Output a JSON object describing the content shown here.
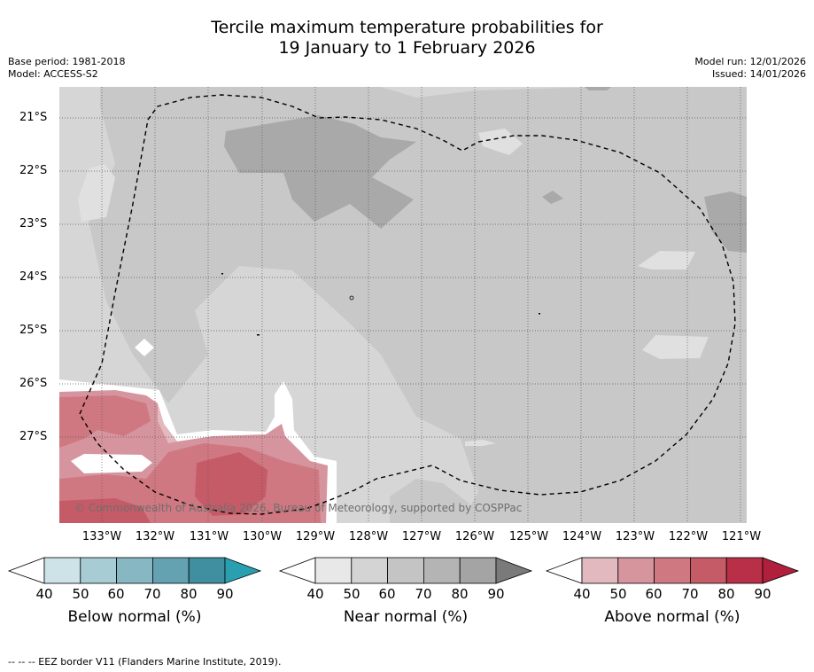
{
  "title": {
    "line1": "Tercile maximum temperature probabilities for",
    "line2": "19 January to 1 February 2026"
  },
  "meta": {
    "base_period": "Base period: 1981-2018",
    "model": "Model: ACCESS-S2",
    "model_run": "Model run: 12/01/2026",
    "issued": "Issued: 14/01/2026"
  },
  "map": {
    "lat_labels": [
      "21°S",
      "22°S",
      "23°S",
      "24°S",
      "25°S",
      "26°S",
      "27°S"
    ],
    "lon_labels": [
      "133°W",
      "132°W",
      "131°W",
      "130°W",
      "129°W",
      "128°W",
      "127°W",
      "126°W",
      "125°W",
      "124°W",
      "123°W",
      "122°W",
      "121°W"
    ],
    "copyright": "© Commonwealth of Australia 2026, Bureau of Meteorology, supported by COSPPac"
  },
  "colorbars": [
    {
      "label": "Below normal (%)",
      "ticks": [
        "40",
        "50",
        "60",
        "70",
        "80",
        "90"
      ],
      "colors": [
        "#ffffff",
        "#cde3e8",
        "#a8ccd4",
        "#86b7c2",
        "#64a2b1",
        "#3f8fa0",
        "#2a9fb0"
      ]
    },
    {
      "label": "Near normal (%)",
      "ticks": [
        "40",
        "50",
        "60",
        "70",
        "80",
        "90"
      ],
      "colors": [
        "#ffffff",
        "#e8e8e8",
        "#d4d4d4",
        "#c4c4c4",
        "#b4b4b4",
        "#a4a4a4",
        "#7a7a7a"
      ]
    },
    {
      "label": "Above normal (%)",
      "ticks": [
        "40",
        "50",
        "60",
        "70",
        "80",
        "90"
      ],
      "colors": [
        "#ffffff",
        "#e2b9be",
        "#d6949d",
        "#cf7881",
        "#c65b68",
        "#ba2f48",
        "#b01f3c"
      ]
    }
  ],
  "footer": "--  --  -- EEZ border V11 (Flanders Marine Institute, 2019)."
}
